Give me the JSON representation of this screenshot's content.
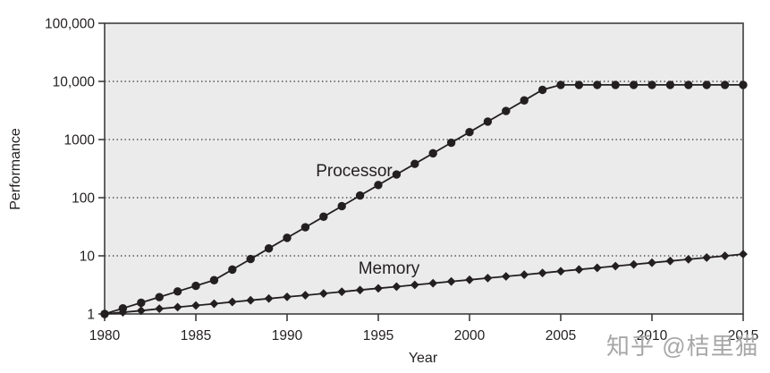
{
  "watermark": {
    "text": "知乎 @桔里猫"
  },
  "colors": {
    "plot_bg": "#ebebeb",
    "frame": "#3d3d3f",
    "line": "#231f20",
    "marker": "#231f20",
    "grid": "#2e2e2e",
    "text": "#231f20",
    "watermark": "#a7a7a7"
  },
  "chart_data": {
    "type": "line",
    "title": "",
    "xlabel": "Year",
    "ylabel": "Performance",
    "legend_position": "inline-labels",
    "grid": "horizontal-dotted",
    "x_axis": {
      "min": 1980,
      "max": 2015,
      "ticks": [
        1980,
        1985,
        1990,
        1995,
        2000,
        2005,
        2010,
        2015
      ],
      "tick_labels": [
        "1980",
        "1985",
        "1990",
        "1995",
        "2000",
        "2005",
        "2010",
        "2015"
      ]
    },
    "y_axis": {
      "scale": "log",
      "min": 1,
      "max": 100000,
      "ticks": [
        1,
        10,
        100,
        1000,
        10000,
        100000
      ],
      "tick_labels": [
        "1",
        "10",
        "100",
        "1000",
        "10,000",
        "100,000"
      ],
      "grid_values": [
        10,
        100,
        1000,
        10000
      ]
    },
    "x": [
      1980,
      1981,
      1982,
      1983,
      1984,
      1985,
      1986,
      1987,
      1988,
      1989,
      1990,
      1991,
      1992,
      1993,
      1994,
      1995,
      1996,
      1997,
      1998,
      1999,
      2000,
      2001,
      2002,
      2003,
      2004,
      2005,
      2006,
      2007,
      2008,
      2009,
      2010,
      2011,
      2012,
      2013,
      2014,
      2015
    ],
    "series": [
      {
        "name": "Processor",
        "marker": "circle",
        "values": [
          1,
          1.25,
          1.56,
          1.95,
          2.44,
          3.05,
          3.81,
          5.8,
          8.81,
          13.4,
          20.4,
          31,
          47.1,
          71.5,
          109,
          165,
          251,
          382,
          580,
          882,
          1341,
          2038,
          3098,
          4709,
          7158,
          8700,
          8700,
          8700,
          8700,
          8700,
          8700,
          8700,
          8700,
          8700,
          8700,
          8700
        ]
      },
      {
        "name": "Memory",
        "marker": "diamond",
        "values": [
          1,
          1.07,
          1.14,
          1.23,
          1.31,
          1.4,
          1.5,
          1.61,
          1.72,
          1.84,
          1.97,
          2.1,
          2.25,
          2.41,
          2.58,
          2.76,
          2.95,
          3.16,
          3.38,
          3.62,
          3.87,
          4.14,
          4.43,
          4.74,
          5.07,
          5.43,
          5.81,
          6.21,
          6.65,
          7.11,
          7.61,
          8.15,
          8.72,
          9.33,
          9.98,
          10.68
        ]
      }
    ]
  }
}
